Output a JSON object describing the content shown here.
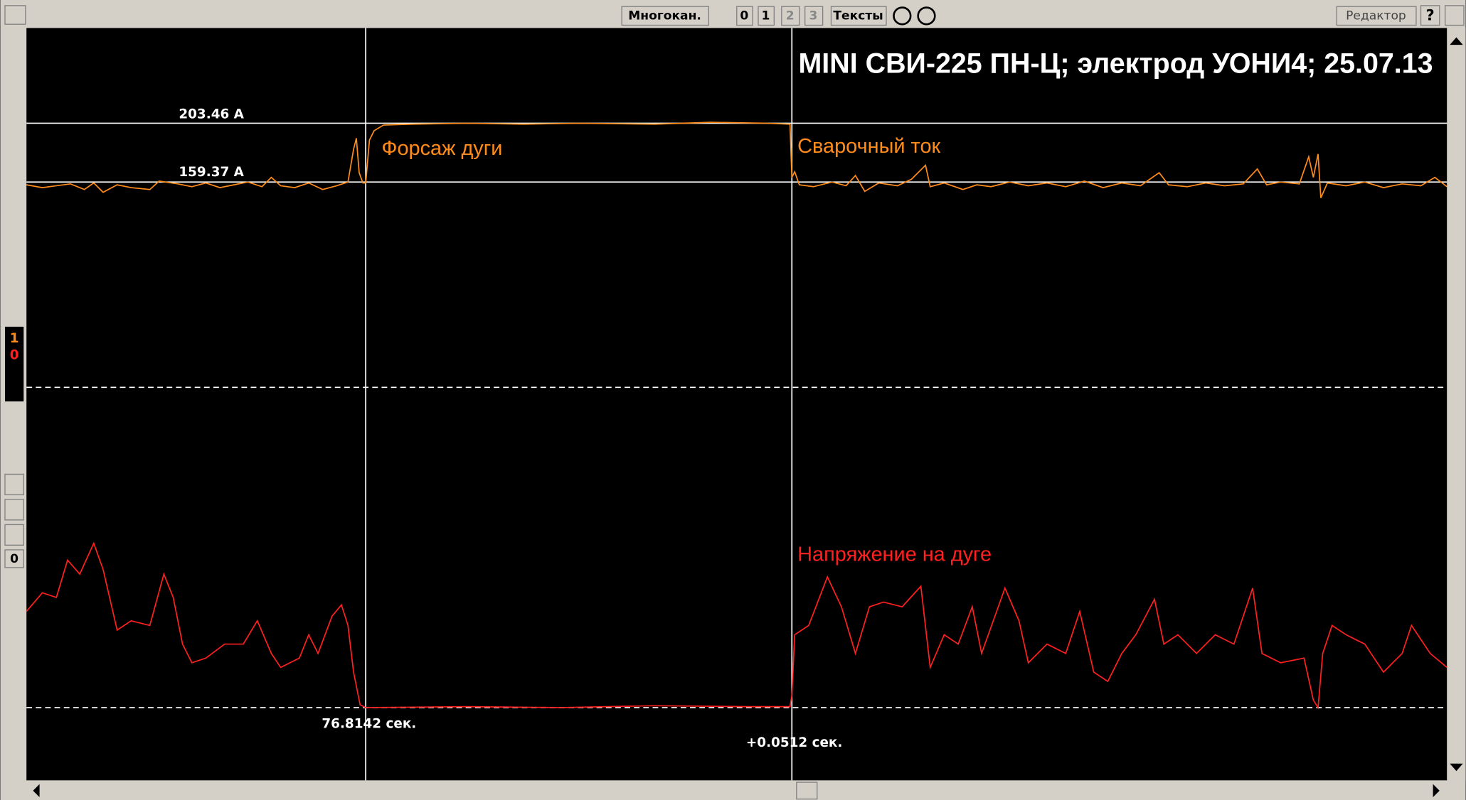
{
  "toolbar": {
    "multichannel": "Многокан.",
    "channels": [
      "0",
      "1",
      "2",
      "3"
    ],
    "texts": "Тексты",
    "editor": "Редактор",
    "help": "?"
  },
  "plot": {
    "title": "MINI СВИ-225 ПН-Ц; электрод УОНИ4; 25.07.13",
    "cursor_labels": [
      "203.46 A",
      "159.37 A",
      "76.8142 сек.",
      "+0.0512 сек."
    ],
    "annotations": [
      "Форсаж дуги",
      "Сварочный ток",
      "Напряжение на дуге"
    ]
  },
  "sidebar": {
    "channel_indicator": [
      "1",
      "0"
    ],
    "counter": "0"
  }
}
